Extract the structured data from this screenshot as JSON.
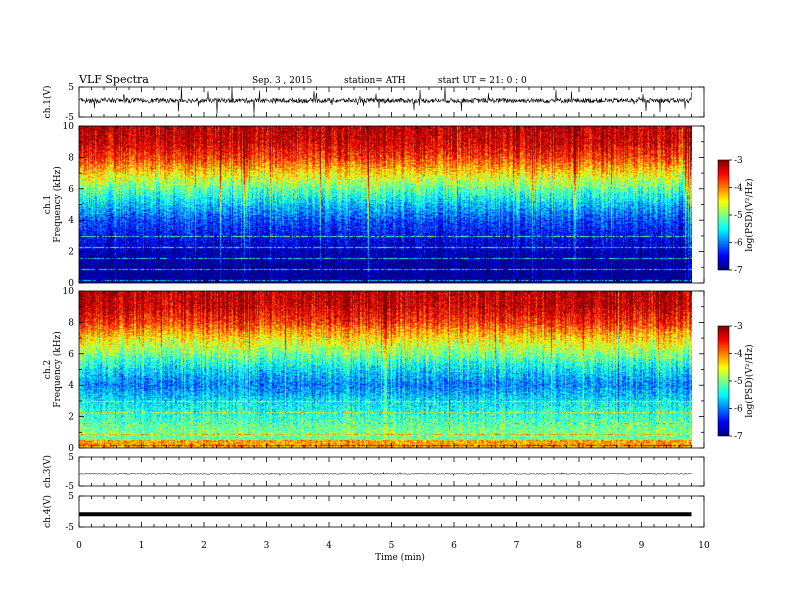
{
  "header": {
    "title": "VLF  Spectra",
    "date": "Sep. 3  , 2015",
    "station": "station= ATH",
    "start": "start  UT  =   21: 0  : 0"
  },
  "chart_data": [
    {
      "type": "line",
      "panel": "ch1-waveform",
      "ylabel": "ch.1(V)",
      "yticks": [
        "5",
        "-5"
      ],
      "ylim": [
        -5,
        5
      ],
      "xlim": [
        0,
        10
      ],
      "x_extent": [
        0,
        9.8
      ],
      "baseline": 0.5,
      "style": "noisy"
    },
    {
      "type": "heatmap",
      "panel": "ch1-spectrogram",
      "ylabel": "ch.1",
      "ylabel2": "Frequency  (kHz)",
      "yticks": [
        "0",
        "2",
        "4",
        "6",
        "8",
        "10"
      ],
      "ylim": [
        0,
        10
      ],
      "xlim": [
        0,
        10
      ],
      "x_extent": [
        0,
        9.8
      ],
      "colorbar": {
        "label": "log(PSD)(V²/Hz)",
        "ticks": [
          "-3",
          "-4",
          "-5",
          "-6",
          "-7"
        ],
        "range": [
          -7,
          -3
        ]
      },
      "profile_freq_khz": [
        0,
        1,
        2,
        3,
        4,
        5,
        6,
        7,
        8,
        9,
        10
      ],
      "profile_logpsd": [
        -7,
        -7,
        -6.8,
        -6.5,
        -6.2,
        -5.7,
        -5.1,
        -4.4,
        -3.7,
        -3.3,
        -3.2
      ]
    },
    {
      "type": "heatmap",
      "panel": "ch2-spectrogram",
      "ylabel": "ch.2",
      "ylabel2": "Frequency  (kHz)",
      "yticks": [
        "0",
        "2",
        "4",
        "6",
        "8",
        "10"
      ],
      "ylim": [
        0,
        10
      ],
      "xlim": [
        0,
        10
      ],
      "x_extent": [
        0,
        9.8
      ],
      "colorbar": {
        "label": "log(PSD)(V²/Hz)",
        "ticks": [
          "-3",
          "-4",
          "-5",
          "-6",
          "-7"
        ],
        "range": [
          -7,
          -3
        ]
      },
      "profile_freq_khz": [
        0,
        1,
        2,
        3,
        4,
        5,
        6,
        7,
        8,
        9,
        10
      ],
      "profile_logpsd": [
        -5.2,
        -5.0,
        -5.3,
        -5.6,
        -6.0,
        -5.6,
        -5.0,
        -4.4,
        -3.7,
        -3.3,
        -3.2
      ]
    },
    {
      "type": "line",
      "panel": "ch3-waveform",
      "ylabel": "ch.3(V)",
      "yticks": [
        "5",
        "-5"
      ],
      "ylim": [
        -5,
        5
      ],
      "xlim": [
        0,
        10
      ],
      "x_extent": [
        0,
        9.8
      ],
      "baseline": -0.8,
      "style": "quiet"
    },
    {
      "type": "line",
      "panel": "ch4-waveform",
      "ylabel": "ch.4(V)",
      "yticks": [
        "5",
        "-5"
      ],
      "ylim": [
        -5,
        5
      ],
      "xlim": [
        0,
        10
      ],
      "x_extent": [
        0,
        9.8
      ],
      "baseline": -0.9,
      "style": "flat-thick"
    }
  ],
  "xaxis": {
    "label": "Time  (min)",
    "ticks": [
      "0",
      "1",
      "2",
      "3",
      "4",
      "5",
      "6",
      "7",
      "8",
      "9",
      "10"
    ]
  },
  "colors": {
    "axis": "#000000",
    "background": "#ffffff"
  }
}
